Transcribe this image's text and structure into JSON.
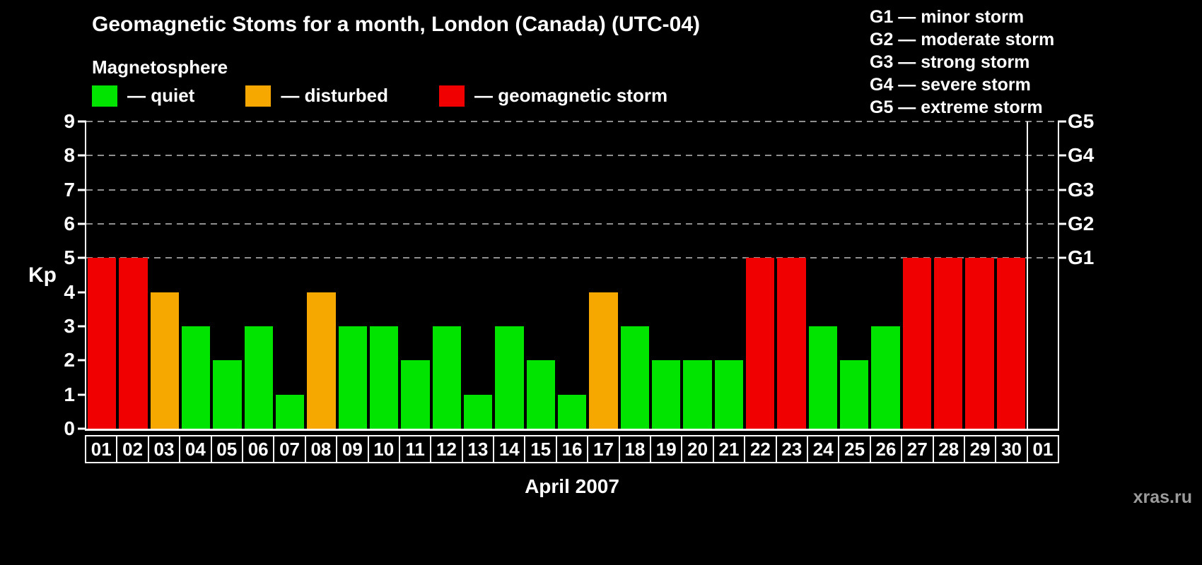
{
  "watermark": "xras.ru",
  "legend": {
    "heading": "Magnetosphere",
    "items": [
      {
        "name": "quiet",
        "label": "— quiet",
        "color": "#00e400"
      },
      {
        "name": "disturbed",
        "label": "— disturbed",
        "color": "#f7a800"
      },
      {
        "name": "storm",
        "label": "— geomagnetic storm",
        "color": "#f00000"
      }
    ]
  },
  "g_scale_legend": [
    "G1 — minor storm",
    "G2 — moderate storm",
    "G3 — strong storm",
    "G4 — severe storm",
    "G5 — extreme storm"
  ],
  "chart_data": {
    "type": "bar",
    "title": "Geomagnetic Stoms for a month, London (Canada) (UTC-04)",
    "xlabel": "April 2007",
    "ylabel": "Kp",
    "ylim": [
      0,
      9
    ],
    "y_ticks": [
      0,
      1,
      2,
      3,
      4,
      5,
      6,
      7,
      8,
      9
    ],
    "right_axis_ticks": [
      {
        "label": "G1",
        "value": 5
      },
      {
        "label": "G2",
        "value": 6
      },
      {
        "label": "G3",
        "value": 7
      },
      {
        "label": "G4",
        "value": 8
      },
      {
        "label": "G5",
        "value": 9
      }
    ],
    "gridlines": [
      5,
      6,
      7,
      8,
      9
    ],
    "grid": "dashed-gray",
    "legend_position": "top-left",
    "categories": [
      "01",
      "02",
      "03",
      "04",
      "05",
      "06",
      "07",
      "08",
      "09",
      "10",
      "11",
      "12",
      "13",
      "14",
      "15",
      "16",
      "17",
      "18",
      "19",
      "20",
      "21",
      "22",
      "23",
      "24",
      "25",
      "26",
      "27",
      "28",
      "29",
      "30",
      "01"
    ],
    "values": [
      5,
      5,
      4,
      3,
      2,
      3,
      1,
      4,
      3,
      3,
      2,
      3,
      1,
      3,
      2,
      1,
      4,
      3,
      2,
      2,
      2,
      5,
      5,
      3,
      2,
      3,
      5,
      5,
      5,
      5,
      null
    ],
    "status_colors": {
      "quiet": "#00e400",
      "disturbed": "#f7a800",
      "storm": "#f00000"
    },
    "color_rule": "kp<=3 quiet (green), kp==4 disturbed (orange), kp>=5 storm (red)",
    "month_separator_after_index": 29
  }
}
